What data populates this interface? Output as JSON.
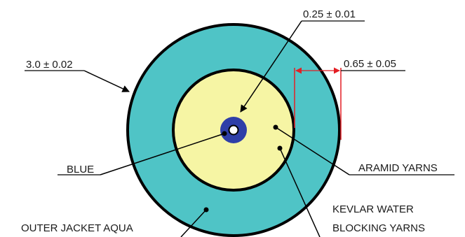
{
  "labels": {
    "outer_diameter": "3.0 ± 0.02",
    "fiber_diameter": "0.25 ± 0.01",
    "jacket_thickness": "0.65 ± 0.05",
    "blue": "BLUE",
    "aramid": "ARAMID YARNS",
    "kevlar_line1": "KEVLAR WATER",
    "kevlar_line2": "BLOCKING YARNS",
    "outer_jacket": "OUTER JACKET AQUA"
  },
  "colors": {
    "jacket": "#4fc4c6",
    "yarn": "#f6f5a4",
    "fiber": "#2f3fa8",
    "outline": "#000000",
    "dimension": "#e31e24"
  }
}
